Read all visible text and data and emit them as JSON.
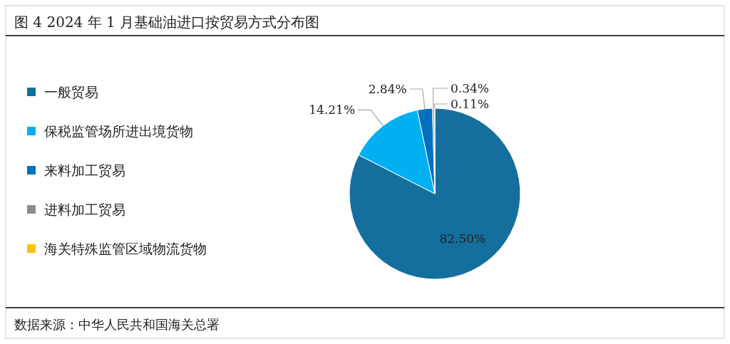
{
  "chart_data": {
    "type": "pie",
    "title": "图 4 2024 年 1 月基础油进口按贸易方式分布图",
    "categories": [
      "一般贸易",
      "保税监管场所进出境货物",
      "来料加工贸易",
      "进料加工贸易",
      "海关特殊监管区域物流货物"
    ],
    "values": [
      82.5,
      14.21,
      2.84,
      0.34,
      0.11
    ],
    "colors": [
      "#156f9e",
      "#00b0f0",
      "#0070c0",
      "#8c8c8c",
      "#ffc000"
    ],
    "value_labels": [
      "82.50%",
      "14.21%",
      "2.84%",
      "0.34%",
      "0.11%"
    ],
    "legend": "left",
    "annotations": [
      "数据来源：中华人民共和国海关总署"
    ]
  }
}
